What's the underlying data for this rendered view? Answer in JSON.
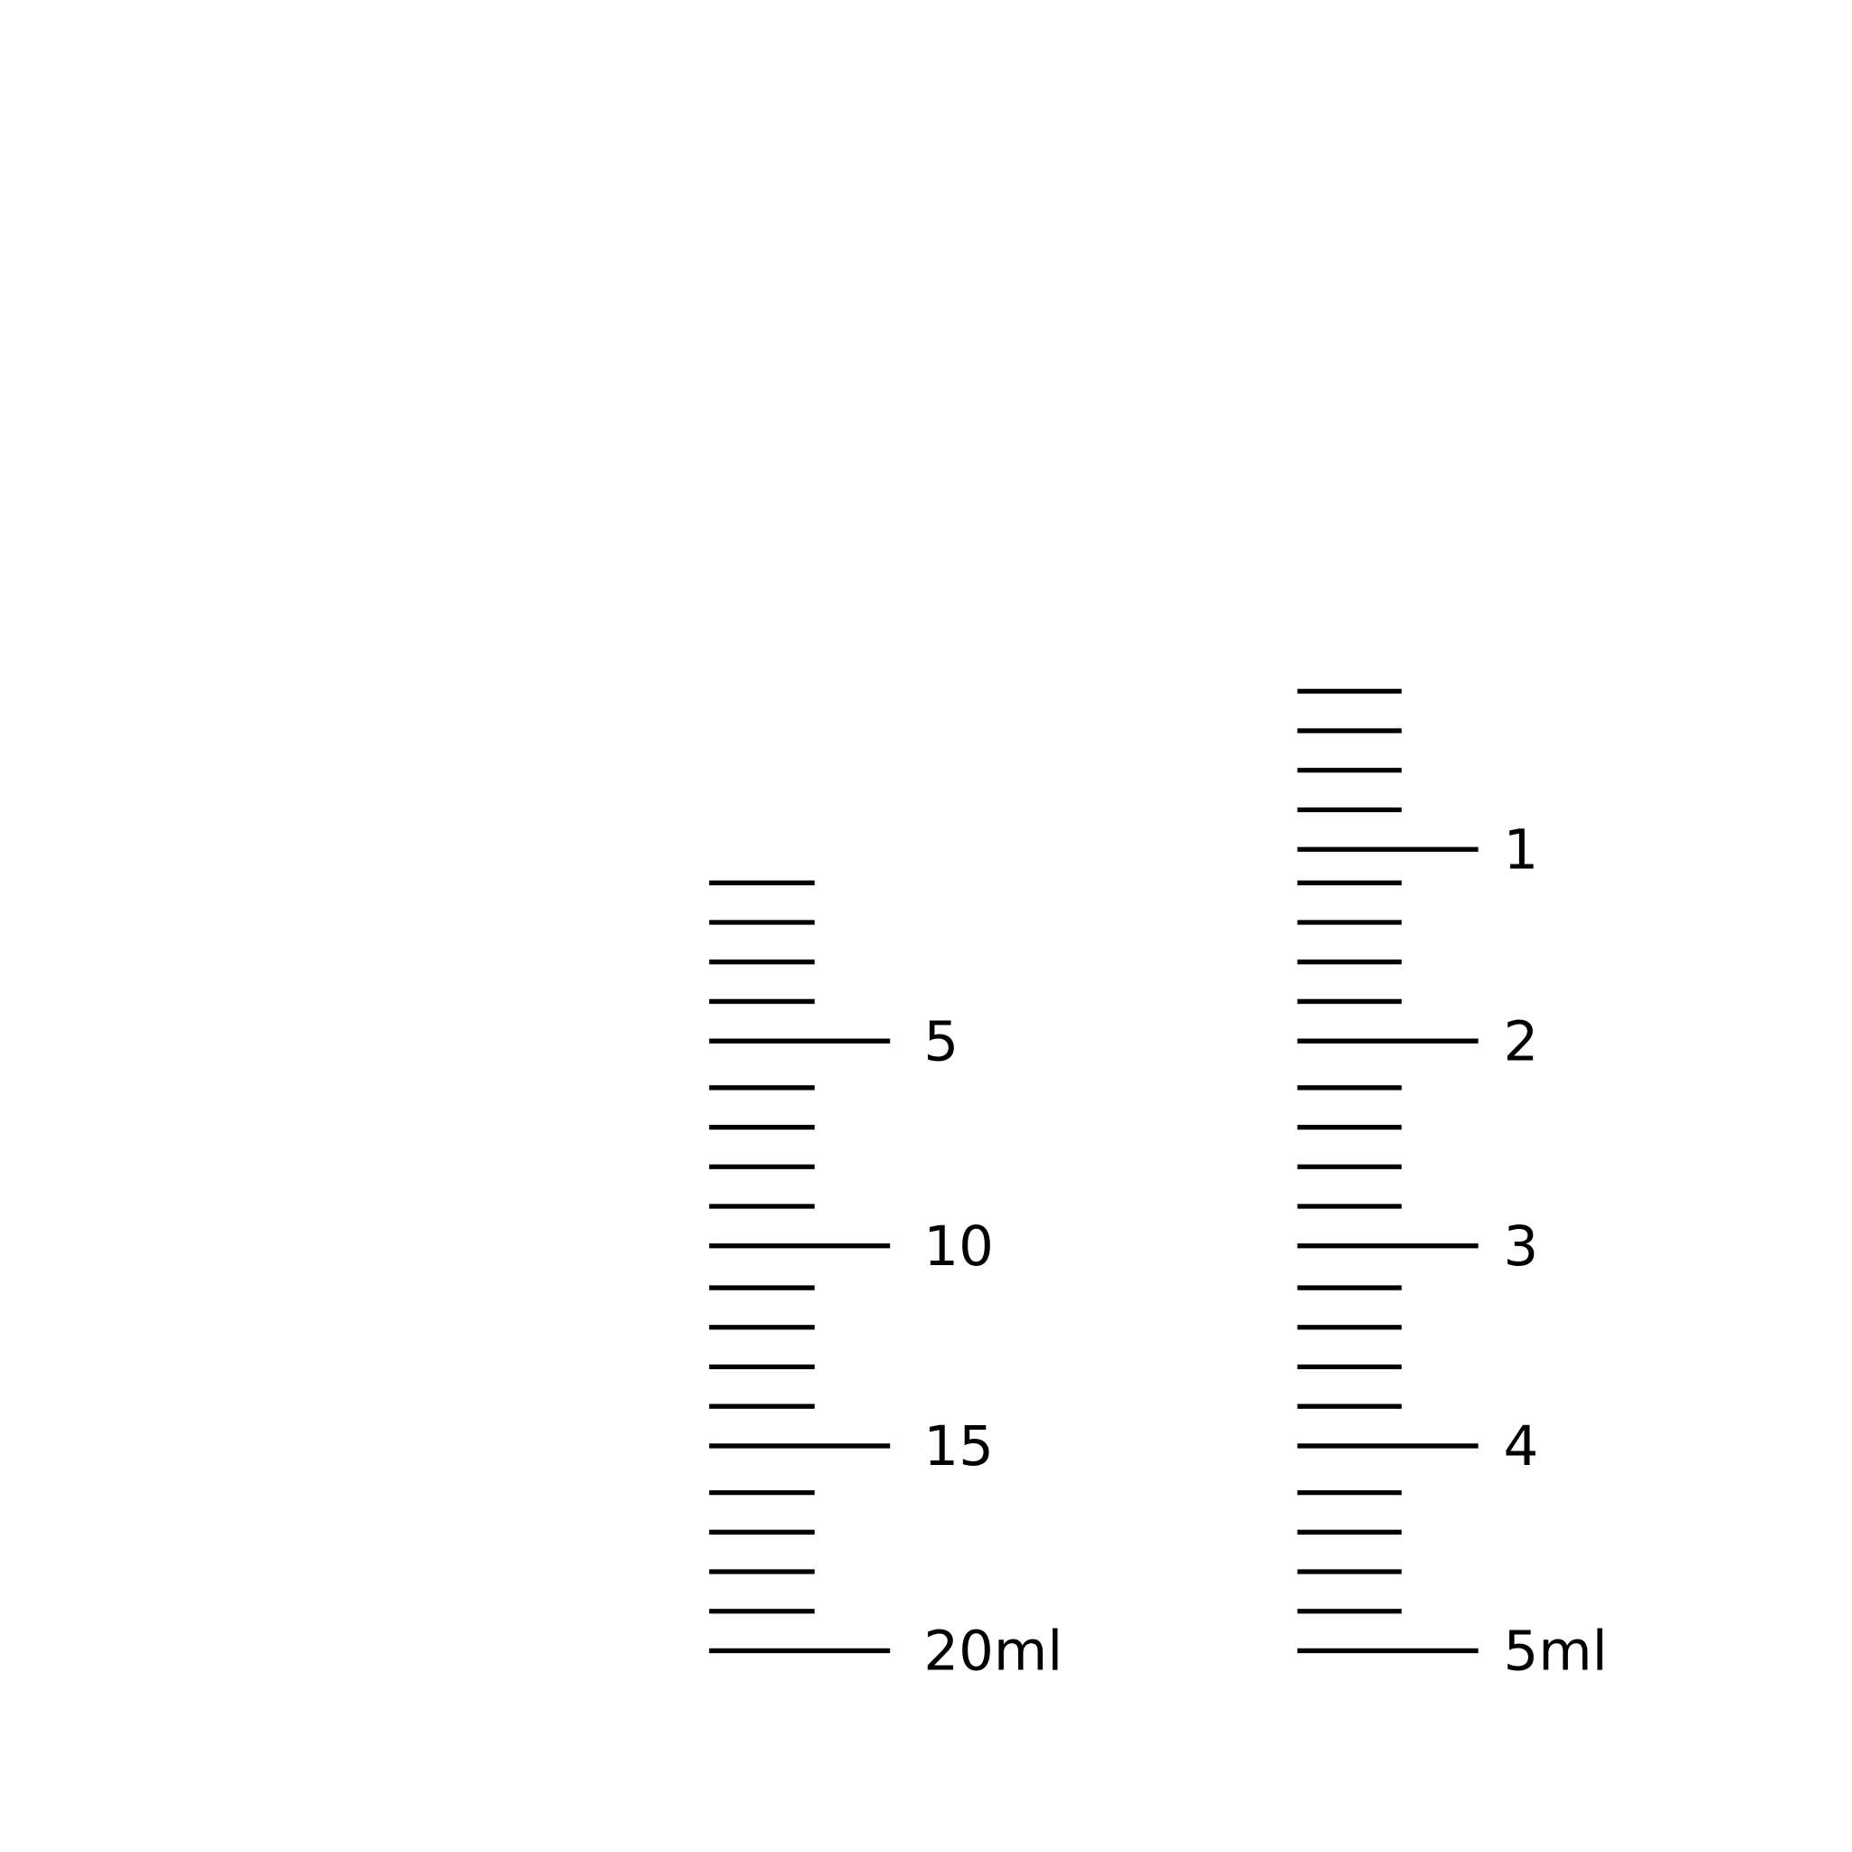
{
  "colors": {
    "tick": "#000000",
    "background": "#ffffff"
  },
  "scales": [
    {
      "name": "syringe-scale-20ml",
      "capacity_ml": 20,
      "minor_step_ml": 1,
      "major_every_ml": 5,
      "labels": [
        {
          "value": 5,
          "text": "5"
        },
        {
          "value": 10,
          "text": "10"
        },
        {
          "value": 15,
          "text": "15"
        },
        {
          "value": 20,
          "text": "20ml"
        }
      ]
    },
    {
      "name": "syringe-scale-5ml",
      "capacity_ml": 5,
      "minor_step_ml": 0.2,
      "major_every_ml": 1,
      "labels": [
        {
          "value": 1,
          "text": "1"
        },
        {
          "value": 2,
          "text": "2"
        },
        {
          "value": 3,
          "text": "3"
        },
        {
          "value": 4,
          "text": "4"
        },
        {
          "value": 5,
          "text": "5ml"
        }
      ]
    }
  ]
}
